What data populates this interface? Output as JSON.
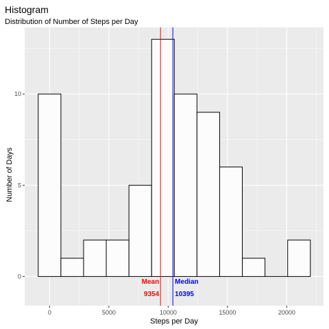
{
  "chart_data": {
    "type": "bar",
    "title": "Histogram",
    "subtitle": "Distribution of Number of Steps per Day",
    "xlabel": "Steps per Day",
    "ylabel": "Number of Days",
    "bin_width": 1912.3,
    "bins": [
      {
        "x0": -956,
        "x1": 956,
        "count": 10
      },
      {
        "x0": 956,
        "x1": 2868,
        "count": 1
      },
      {
        "x0": 2868,
        "x1": 4780,
        "count": 2
      },
      {
        "x0": 4780,
        "x1": 6693,
        "count": 2
      },
      {
        "x0": 6693,
        "x1": 8605,
        "count": 5
      },
      {
        "x0": 8605,
        "x1": 10517,
        "count": 13
      },
      {
        "x0": 10517,
        "x1": 12429,
        "count": 10
      },
      {
        "x0": 12429,
        "x1": 14341,
        "count": 9
      },
      {
        "x0": 14341,
        "x1": 16253,
        "count": 6
      },
      {
        "x0": 16253,
        "x1": 18165,
        "count": 1
      },
      {
        "x0": 18165,
        "x1": 20078,
        "count": 0
      },
      {
        "x0": 20078,
        "x1": 21990,
        "count": 2
      }
    ],
    "xlim": [
      -2100,
      23100
    ],
    "ylim": [
      -1.6,
      13.65
    ],
    "x_ticks": [
      0,
      5000,
      10000,
      15000,
      20000
    ],
    "x_tick_labels": [
      "0",
      "5000",
      "10000",
      "15000",
      "20000"
    ],
    "y_ticks": [
      0,
      5,
      10
    ],
    "y_tick_labels": [
      "0",
      "5",
      "10"
    ],
    "grid": true,
    "reference_lines": [
      {
        "name": "Mean",
        "value": 9354,
        "label": "Mean",
        "value_label": "9354",
        "color": "#ff0000",
        "label_side": "left"
      },
      {
        "name": "Median",
        "value": 10395,
        "label": "Median",
        "value_label": "10395",
        "color": "#0000ff",
        "label_side": "right"
      }
    ],
    "colors": {
      "panel": "#ebebeb",
      "grid_major": "#ffffff",
      "bar_fill": "#fcfcfc",
      "bar_stroke": "#000000"
    }
  }
}
